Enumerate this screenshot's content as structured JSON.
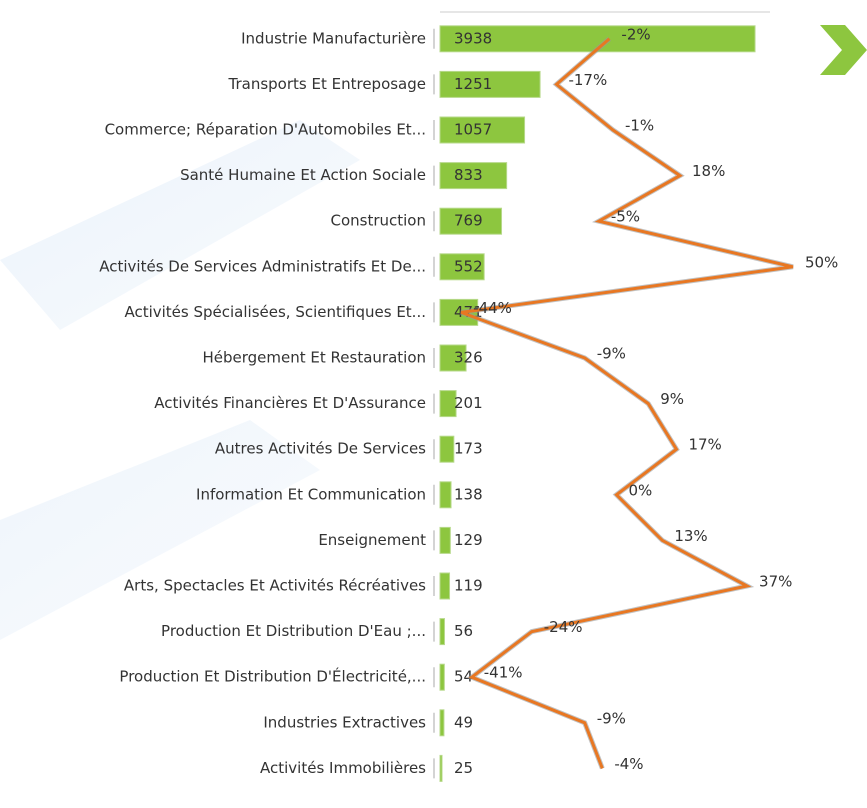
{
  "chart_data": {
    "type": "bar",
    "categories": [
      "Industrie Manufacturière",
      "Transports Et Entreposage",
      "Commerce; Réparation D'Automobiles Et...",
      "Santé Humaine Et Action Sociale",
      "Construction",
      "Activités De Services Administratifs Et De...",
      "Activités Spécialisées, Scientifiques Et...",
      "Hébergement Et Restauration",
      "Activités Financières Et D'Assurance",
      "Autres Activités De Services",
      "Information Et Communication",
      "Enseignement",
      "Arts, Spectacles Et Activités Récréatives",
      "Production Et Distribution D'Eau ;...",
      "Production Et Distribution D'Électricité,...",
      "Industries Extractives",
      "Activités Immobilières"
    ],
    "series": [
      {
        "type": "bar",
        "color": "#8dc63f",
        "values": [
          3938,
          1251,
          1057,
          833,
          769,
          552,
          471,
          326,
          201,
          173,
          138,
          129,
          119,
          56,
          54,
          49,
          25
        ]
      },
      {
        "type": "line",
        "axis": "x2",
        "color": "#e87722",
        "values": [
          -2,
          -17,
          -1,
          18,
          -5,
          50,
          -44,
          -9,
          9,
          17,
          0,
          13,
          37,
          -24,
          -41,
          -9,
          -4
        ],
        "value_labels": [
          "-2%",
          "-17%",
          "-1%",
          "18%",
          "-5%",
          "50%",
          "-44%",
          "-9%",
          "9%",
          "17%",
          "0%",
          "13%",
          "37%",
          "-24%",
          "-41%",
          "-9%",
          "-4%"
        ]
      }
    ],
    "xlim": [
      0,
      4500
    ],
    "x2lim": [
      -50,
      52
    ]
  }
}
